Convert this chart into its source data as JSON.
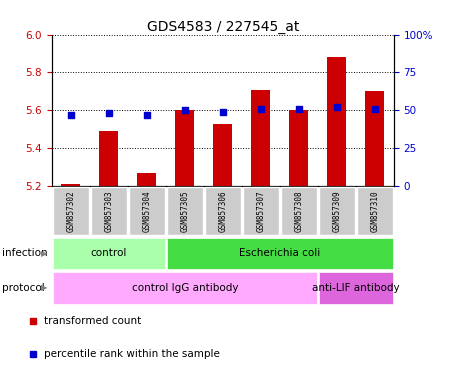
{
  "title": "GDS4583 / 227545_at",
  "samples": [
    "GSM857302",
    "GSM857303",
    "GSM857304",
    "GSM857305",
    "GSM857306",
    "GSM857307",
    "GSM857308",
    "GSM857309",
    "GSM857310"
  ],
  "transformed_count": [
    5.21,
    5.49,
    5.27,
    5.6,
    5.53,
    5.71,
    5.6,
    5.88,
    5.7
  ],
  "percentile_rank": [
    47,
    48,
    47,
    50,
    49,
    51,
    51,
    52,
    51
  ],
  "ylim_left": [
    5.2,
    6.0
  ],
  "yticks_left": [
    5.2,
    5.4,
    5.6,
    5.8,
    6.0
  ],
  "ylim_right": [
    0,
    100
  ],
  "yticks_right": [
    0,
    25,
    50,
    75,
    100
  ],
  "yticklabels_right": [
    "0",
    "25",
    "50",
    "75",
    "100%"
  ],
  "bar_color": "#cc0000",
  "dot_color": "#0000cc",
  "infection_labels": [
    {
      "text": "control",
      "start": 0,
      "end": 3,
      "color": "#aaffaa"
    },
    {
      "text": "Escherichia coli",
      "start": 3,
      "end": 9,
      "color": "#44dd44"
    }
  ],
  "protocol_labels": [
    {
      "text": "control IgG antibody",
      "start": 0,
      "end": 7,
      "color": "#ffaaff"
    },
    {
      "text": "anti-LIF antibody",
      "start": 7,
      "end": 9,
      "color": "#dd66dd"
    }
  ],
  "legend_items": [
    {
      "color": "#cc0000",
      "label": "transformed count"
    },
    {
      "color": "#0000cc",
      "label": "percentile rank within the sample"
    }
  ],
  "left_axis_color": "#cc0000",
  "right_axis_color": "#0000cc",
  "sample_box_color": "#cccccc",
  "background_color": "#ffffff",
  "title_fontsize": 10,
  "tick_fontsize": 7.5,
  "label_fontsize": 7.5,
  "sample_fontsize": 5.5
}
